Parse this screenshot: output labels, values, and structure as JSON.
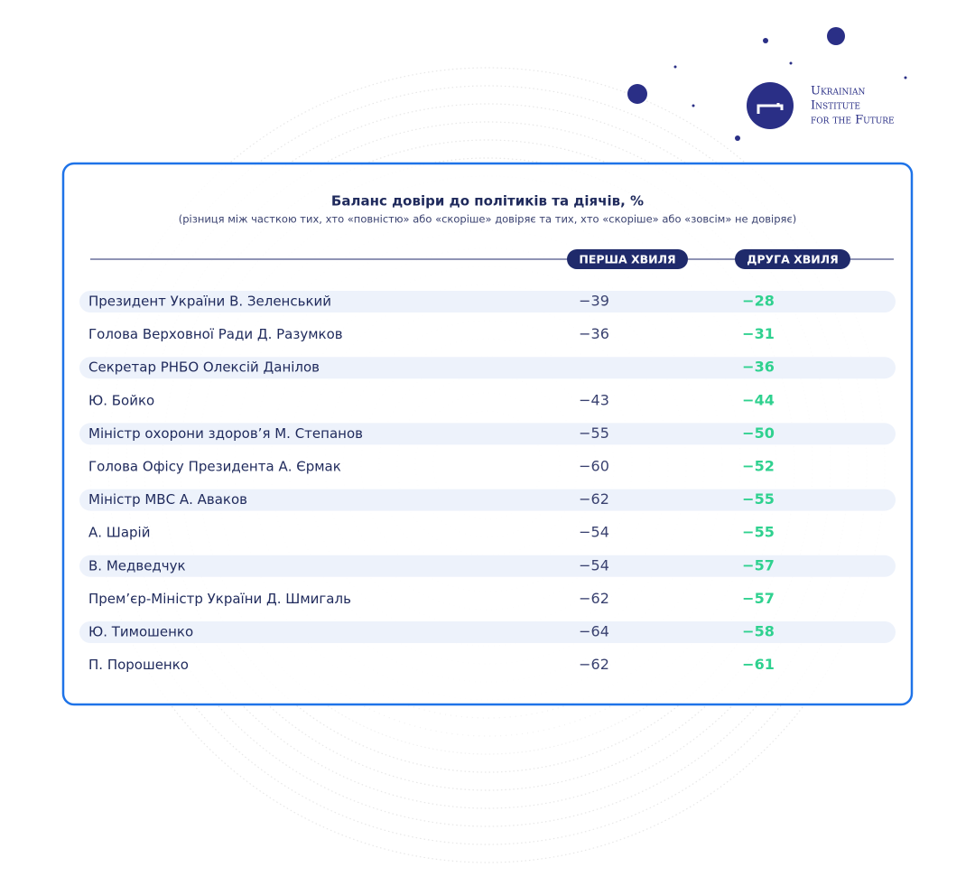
{
  "logo": {
    "lines": [
      "Ukrainian",
      "Institute",
      "for the Future"
    ]
  },
  "table": {
    "title": "Баланс довіри до політиків та діячів, %",
    "subtitle": "(різниця між часткою тих, хто «повністю» або «скоріше» довіряє та тих, хто «скоріше» або «зовсім» не довіряє)",
    "columns": [
      "ПЕРША ХВИЛЯ",
      "ДРУГА ХВИЛЯ"
    ],
    "rows": [
      [
        "Президент України В. Зеленський",
        "−39",
        "−28"
      ],
      [
        "Голова Верховної Ради Д. Разумков",
        "−36",
        "−31"
      ],
      [
        "Секретар РНБО Олексій Данілов",
        null,
        "−36"
      ],
      [
        "Ю. Бойко",
        "−43",
        "−44"
      ],
      [
        "Міністр охорони здоров’я М. Степанов",
        "−55",
        "−50"
      ],
      [
        "Голова Офісу Президента А. Єрмак",
        "−60",
        "−52"
      ],
      [
        "Міністр МВС А. Аваков",
        "−62",
        "−55"
      ],
      [
        "А. Шарій",
        "−54",
        "−55"
      ],
      [
        "В. Медведчук",
        "−54",
        "−57"
      ],
      [
        "Прем’єр-Міністр України Д. Шмигаль",
        "−62",
        "−57"
      ],
      [
        "Ю. Тимошенко",
        "−64",
        "−58"
      ],
      [
        "П. Порошенко",
        "−62",
        "−61"
      ]
    ]
  }
}
